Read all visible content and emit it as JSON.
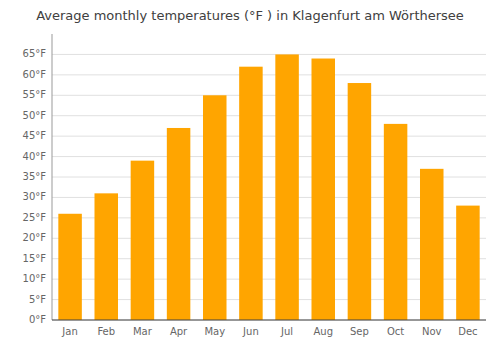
{
  "chart_data": {
    "type": "bar",
    "title": "Average monthly temperatures (°F ) in Klagenfurt am Wörthersee",
    "categories": [
      "Jan",
      "Feb",
      "Mar",
      "Apr",
      "May",
      "Jun",
      "Jul",
      "Aug",
      "Sep",
      "Oct",
      "Nov",
      "Dec"
    ],
    "values": [
      26,
      31,
      39,
      47,
      55,
      62,
      65,
      64,
      58,
      48,
      37,
      28
    ],
    "color": "#FFA500",
    "ylim": [
      0,
      70
    ],
    "yticks": [
      {
        "value": 0,
        "label": "0°F"
      },
      {
        "value": 5,
        "label": "5°F"
      },
      {
        "value": 10,
        "label": "10°F"
      },
      {
        "value": 15,
        "label": "15°F"
      },
      {
        "value": 20,
        "label": "20°F"
      },
      {
        "value": 25,
        "label": "25°F"
      },
      {
        "value": 30,
        "label": "30°F"
      },
      {
        "value": 35,
        "label": "35°F"
      },
      {
        "value": 40,
        "label": "40°F"
      },
      {
        "value": 45,
        "label": "45°F"
      },
      {
        "value": 50,
        "label": "50°F"
      },
      {
        "value": 55,
        "label": "55°F"
      },
      {
        "value": 60,
        "label": "60°F"
      },
      {
        "value": 65,
        "label": "65°F"
      }
    ],
    "grid": true
  }
}
